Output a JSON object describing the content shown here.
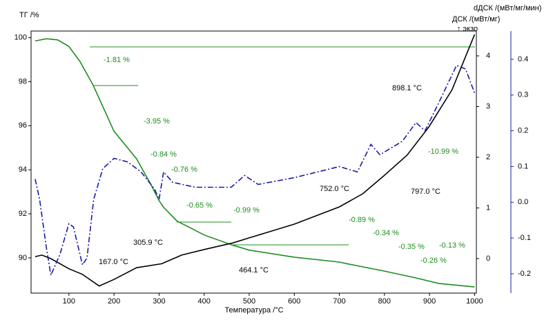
{
  "chart_data": {
    "type": "line",
    "xlabel": "Температура /°C",
    "ylabel": "ТГ /%",
    "y2label": "ДСК /(мВт/мг)",
    "y3label": "dДСК /(мВт/мг/мин)",
    "exo_label": "↑ экзо",
    "xlim": [
      16,
      1004
    ],
    "xticks": [
      100,
      200,
      300,
      400,
      500,
      600,
      700,
      800,
      900,
      1000
    ],
    "ylim": [
      88.4,
      100.3
    ],
    "yticks": [
      90,
      92,
      94,
      96,
      98,
      100
    ],
    "y2lim": [
      -0.68,
      4.49
    ],
    "y2ticks": [
      0,
      1,
      2,
      3,
      4
    ],
    "y3lim": [
      -0.254,
      0.479
    ],
    "y3ticks": [
      -0.2,
      -0.1,
      {
        "value": 0,
        "label": "0.0"
      },
      0.1,
      0.2,
      0.3,
      0.4
    ],
    "series": [
      {
        "name": "ТГ",
        "color": "#1e8c1e",
        "axis": "y",
        "x": [
          25,
          50,
          75,
          100,
          125,
          154,
          200,
          250,
          280,
          300,
          310,
          340,
          400,
          464,
          500,
          600,
          700,
          720,
          800,
          870,
          920,
          1000
        ],
        "values": [
          99.85,
          99.95,
          99.9,
          99.6,
          98.9,
          97.83,
          95.75,
          94.5,
          93.4,
          92.6,
          92.3,
          91.67,
          91.04,
          90.57,
          90.35,
          90.03,
          89.81,
          89.72,
          89.4,
          89.09,
          88.84,
          88.68
        ]
      },
      {
        "name": "ДСК",
        "color": "#000000",
        "axis": "y2",
        "x": [
          25,
          40,
          60,
          100,
          130,
          167,
          200,
          250,
          306,
          350,
          400,
          464,
          500,
          600,
          700,
          752,
          797,
          850,
          898,
          950,
          1000
        ],
        "values": [
          0.04,
          0.07,
          0,
          -0.2,
          -0.31,
          -0.54,
          -0.41,
          -0.18,
          -0.1,
          0.07,
          0.18,
          0.31,
          0.41,
          0.68,
          1.02,
          1.28,
          1.62,
          2.04,
          2.59,
          3.33,
          4.42
        ]
      },
      {
        "name": "dДСК",
        "color": "#1a1aa6",
        "axis": "y3",
        "x": [
          25,
          35,
          50,
          60,
          80,
          100,
          110,
          130,
          140,
          155,
          175,
          200,
          230,
          260,
          290,
          300,
          310,
          330,
          380,
          460,
          490,
          520,
          600,
          700,
          740,
          770,
          790,
          840,
          870,
          890,
          920,
          960,
          980,
          1000
        ],
        "values": [
          0.065,
          0.008,
          -0.127,
          -0.204,
          -0.146,
          -0.06,
          -0.069,
          -0.175,
          -0.156,
          0.008,
          0.094,
          0.123,
          0.113,
          0.085,
          0.037,
          0.008,
          0.085,
          0.056,
          0.042,
          0.042,
          0.075,
          0.05,
          0.069,
          0.1,
          0.085,
          0.162,
          0.133,
          0.171,
          0.223,
          0.2,
          0.277,
          0.383,
          0.373,
          0.306
        ]
      }
    ],
    "mass_annotations": [
      "-1.81 %",
      "-3.95 %",
      "-0.84 %",
      "-0.76 %",
      "-0.65 %",
      "-0.99 %",
      "-0.89 %",
      "-0.34 %",
      "-0.35 %",
      "-0.26 %",
      "-0.13 %",
      "-10.99 %"
    ],
    "temp_annotations": [
      "167.0 °C",
      "305.9 °C",
      "464.1 °C",
      "752.0 °C",
      "797.0 °C",
      "898.1 °C"
    ]
  }
}
